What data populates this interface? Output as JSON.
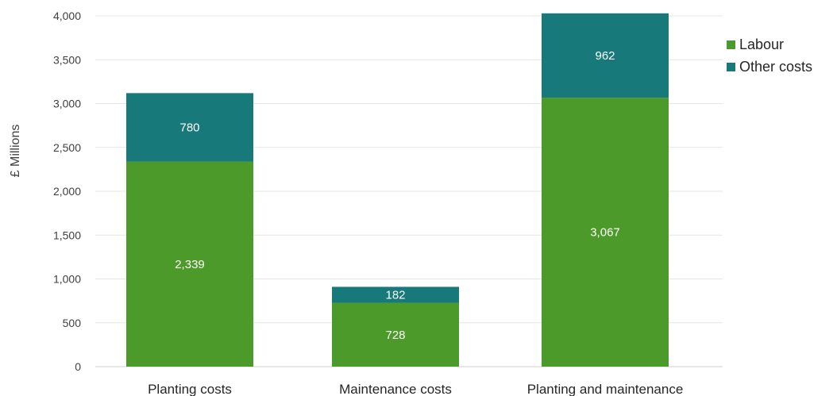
{
  "chart_data": {
    "type": "bar",
    "stacked": true,
    "categories": [
      "Planting costs",
      "Maintenance costs",
      "Planting and maintenance"
    ],
    "series": [
      {
        "name": "Labour",
        "values": [
          2339,
          728,
          3067
        ],
        "labels": [
          "2,339",
          "728",
          "3,067"
        ],
        "color": "#4c9a2a"
      },
      {
        "name": "Other costs",
        "values": [
          780,
          182,
          962
        ],
        "labels": [
          "780",
          "182",
          "962"
        ],
        "color": "#17797a"
      }
    ],
    "ylabel": "£ Millions",
    "xlabel": "",
    "ylim": [
      0,
      4000
    ],
    "yticks": [
      0,
      500,
      1000,
      1500,
      2000,
      2500,
      3000,
      3500,
      4000
    ],
    "ytick_labels": [
      "0",
      "500",
      "1,000",
      "1,500",
      "2,000",
      "2,500",
      "3,000",
      "3,500",
      "4,000"
    ],
    "grid": true,
    "legend_position": "top-right"
  }
}
